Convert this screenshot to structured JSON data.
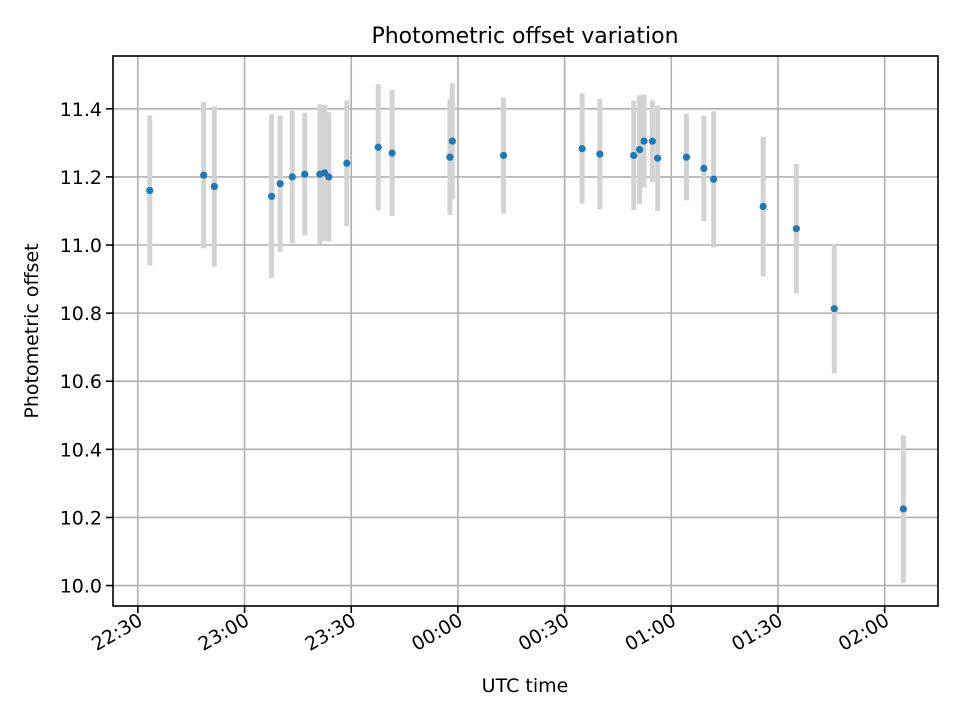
{
  "chart_data": {
    "type": "scatter",
    "title": "Photometric offset variation",
    "xlabel": "UTC time",
    "ylabel": "Photometric offset",
    "grid": true,
    "colors": {
      "point": "#1f77b4",
      "errorbar": "#d3d3d3"
    },
    "xlim": [
      "22:23",
      "02:15"
    ],
    "ylim": [
      9.94,
      11.555
    ],
    "xticks": [
      "22:30",
      "23:00",
      "23:30",
      "00:00",
      "00:30",
      "01:00",
      "01:30",
      "02:00"
    ],
    "yticks": [
      "10.0",
      "10.2",
      "10.4",
      "10.6",
      "10.8",
      "11.0",
      "11.2",
      "11.4"
    ],
    "series": [
      {
        "points": [
          {
            "t": "22:33:20",
            "y": 11.16,
            "err": 0.22
          },
          {
            "t": "22:48:30",
            "y": 11.205,
            "err": 0.215
          },
          {
            "t": "22:51:30",
            "y": 11.172,
            "err": 0.235
          },
          {
            "t": "23:07:35",
            "y": 11.143,
            "err": 0.24
          },
          {
            "t": "23:10:00",
            "y": 11.18,
            "err": 0.2
          },
          {
            "t": "23:13:25",
            "y": 11.2,
            "err": 0.195
          },
          {
            "t": "23:16:55",
            "y": 11.208,
            "err": 0.18
          },
          {
            "t": "23:21:10",
            "y": 11.208,
            "err": 0.205
          },
          {
            "t": "23:22:30",
            "y": 11.212,
            "err": 0.2
          },
          {
            "t": "23:23:40",
            "y": 11.2,
            "err": 0.19
          },
          {
            "t": "23:28:45",
            "y": 11.24,
            "err": 0.185
          },
          {
            "t": "23:37:35",
            "y": 11.287,
            "err": 0.185
          },
          {
            "t": "23:41:30",
            "y": 11.27,
            "err": 0.185
          },
          {
            "t": "23:57:45",
            "y": 11.258,
            "err": 0.17
          },
          {
            "t": "23:58:25",
            "y": 11.305,
            "err": 0.17
          },
          {
            "t": "00:12:50",
            "y": 11.263,
            "err": 0.17
          },
          {
            "t": "00:34:55",
            "y": 11.283,
            "err": 0.162
          },
          {
            "t": "00:39:55",
            "y": 11.267,
            "err": 0.162
          },
          {
            "t": "00:49:25",
            "y": 11.263,
            "err": 0.16
          },
          {
            "t": "00:51:05",
            "y": 11.28,
            "err": 0.16
          },
          {
            "t": "00:52:20",
            "y": 11.305,
            "err": 0.137
          },
          {
            "t": "00:54:40",
            "y": 11.305,
            "err": 0.12
          },
          {
            "t": "00:56:10",
            "y": 11.255,
            "err": 0.155
          },
          {
            "t": "01:04:15",
            "y": 11.258,
            "err": 0.127
          },
          {
            "t": "01:09:10",
            "y": 11.225,
            "err": 0.155
          },
          {
            "t": "01:11:55",
            "y": 11.193,
            "err": 0.2
          },
          {
            "t": "01:25:50",
            "y": 11.113,
            "err": 0.205
          },
          {
            "t": "01:35:10",
            "y": 11.048,
            "err": 0.19
          },
          {
            "t": "01:45:50",
            "y": 10.813,
            "err": 0.19
          },
          {
            "t": "02:05:15",
            "y": 10.225,
            "err": 0.217
          }
        ]
      }
    ]
  }
}
